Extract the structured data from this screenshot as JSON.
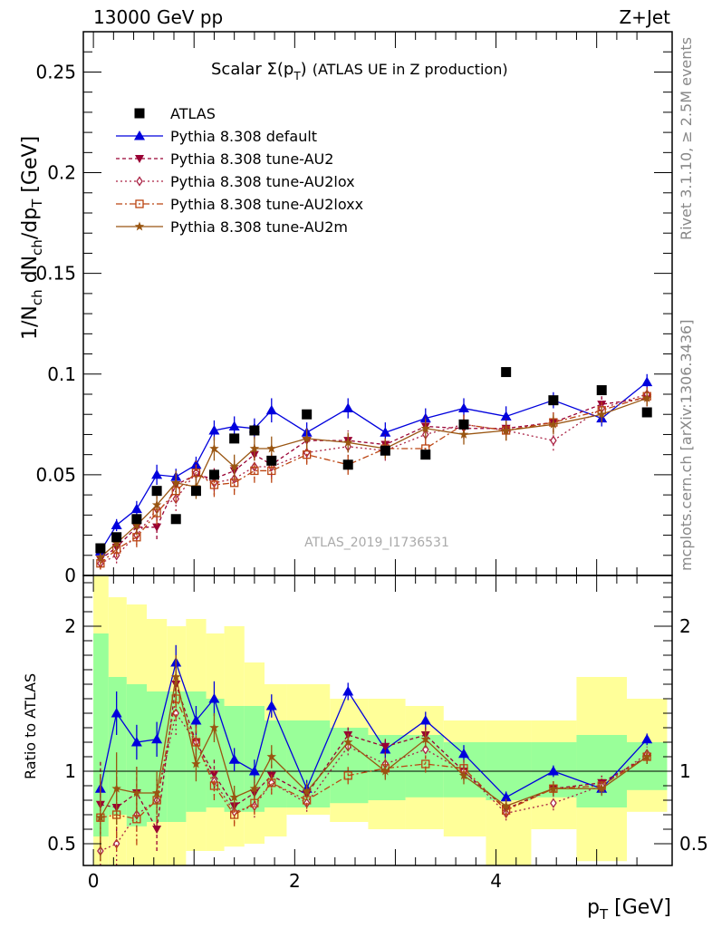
{
  "header": {
    "left": "13000 GeV pp",
    "right": "Z+Jet"
  },
  "side_labels": {
    "rivet": "Rivet 3.1.10, ≥ 2.5M events",
    "mcplots": "mcplots.cern.ch [arXiv:1306.3436]"
  },
  "colors": {
    "atlas": "#000000",
    "default": "#0000dd",
    "au2": "#990033",
    "au2lox": "#aa2244",
    "au2loxx": "#bb4411",
    "au2m": "#995511",
    "band_inner": "#99ff99",
    "band_outer": "#ffff99"
  },
  "chart_data": [
    {
      "type": "line",
      "title_main": "Scalar Σ(p",
      "title_sub": "T",
      "title_close": ")",
      "title_rest": "(ATLAS UE in Z production)",
      "ylabel": "1/N_ch dN_ch/dp_T [GeV]",
      "reference": "ATLAS_2019_I1736531",
      "xlim": [
        -0.1,
        5.75
      ],
      "ylim": [
        0,
        0.27
      ],
      "yticks": [
        {
          "v": 0,
          "label": "0"
        },
        {
          "v": 0.05,
          "label": "0.05"
        },
        {
          "v": 0.1,
          "label": "0.1"
        },
        {
          "v": 0.15,
          "label": "0.15"
        },
        {
          "v": 0.2,
          "label": "0.2"
        },
        {
          "v": 0.25,
          "label": "0.25"
        }
      ],
      "x": [
        0.07,
        0.23,
        0.43,
        0.63,
        0.82,
        1.02,
        1.2,
        1.4,
        1.6,
        1.77,
        2.12,
        2.53,
        2.9,
        3.3,
        3.68,
        4.1,
        4.57,
        5.05,
        5.5
      ],
      "series": [
        {
          "name": "ATLAS",
          "key": "atlas",
          "marker": "square",
          "values": [
            0.0135,
            0.019,
            0.028,
            0.042,
            0.028,
            0.042,
            0.05,
            0.068,
            0.072,
            0.057,
            0.08,
            0.055,
            0.062,
            0.06,
            0.075,
            0.101,
            0.087,
            0.092,
            0.081
          ]
        },
        {
          "name": "Pythia 8.308 default",
          "key": "default",
          "marker": "triangle-up",
          "dash": "",
          "values": [
            0.012,
            0.025,
            0.033,
            0.05,
            0.049,
            0.055,
            0.072,
            0.074,
            0.073,
            0.082,
            0.071,
            0.083,
            0.071,
            0.078,
            0.083,
            0.079,
            0.087,
            0.078,
            0.096
          ],
          "errors": [
            0.002,
            0.003,
            0.004,
            0.005,
            0.004,
            0.004,
            0.005,
            0.005,
            0.005,
            0.006,
            0.005,
            0.005,
            0.005,
            0.005,
            0.005,
            0.005,
            0.004,
            0.004,
            0.004
          ]
        },
        {
          "name": "Pythia 8.308 tune-AU2",
          "key": "au2",
          "marker": "triangle-down",
          "dash": "4,3",
          "values": [
            0.008,
            0.014,
            0.024,
            0.024,
            0.045,
            0.05,
            0.048,
            0.052,
            0.06,
            0.055,
            0.067,
            0.067,
            0.065,
            0.074,
            0.073,
            0.073,
            0.076,
            0.085,
            0.088
          ],
          "errors": [
            0.003,
            0.004,
            0.005,
            0.006,
            0.006,
            0.006,
            0.006,
            0.006,
            0.006,
            0.006,
            0.005,
            0.005,
            0.005,
            0.005,
            0.005,
            0.005,
            0.005,
            0.004,
            0.004
          ]
        },
        {
          "name": "Pythia 8.308 tune-AU2lox",
          "key": "au2lox",
          "marker": "diamond-open",
          "dash": "2,3",
          "values": [
            0.006,
            0.01,
            0.02,
            0.033,
            0.038,
            0.051,
            0.046,
            0.048,
            0.054,
            0.054,
            0.061,
            0.064,
            0.062,
            0.07,
            0.075,
            0.072,
            0.067,
            0.083,
            0.09
          ],
          "errors": [
            0.003,
            0.004,
            0.005,
            0.006,
            0.006,
            0.006,
            0.006,
            0.006,
            0.006,
            0.006,
            0.005,
            0.005,
            0.005,
            0.005,
            0.005,
            0.005,
            0.005,
            0.004,
            0.004
          ]
        },
        {
          "name": "Pythia 8.308 tune-AU2loxx",
          "key": "au2loxx",
          "marker": "square-open",
          "dash": "7,3,2,3",
          "values": [
            0.006,
            0.013,
            0.019,
            0.031,
            0.042,
            0.051,
            0.045,
            0.046,
            0.052,
            0.052,
            0.06,
            0.055,
            0.063,
            0.063,
            0.075,
            0.072,
            0.076,
            0.082,
            0.089
          ],
          "errors": [
            0.003,
            0.004,
            0.005,
            0.006,
            0.006,
            0.006,
            0.006,
            0.006,
            0.006,
            0.006,
            0.005,
            0.005,
            0.005,
            0.005,
            0.005,
            0.005,
            0.005,
            0.004,
            0.004
          ]
        },
        {
          "name": "Pythia 8.308 tune-AU2m",
          "key": "au2m",
          "marker": "star",
          "dash": "",
          "values": [
            0.009,
            0.016,
            0.025,
            0.035,
            0.046,
            0.044,
            0.063,
            0.054,
            0.063,
            0.063,
            0.068,
            0.066,
            0.063,
            0.073,
            0.07,
            0.072,
            0.075,
            0.08,
            0.088
          ],
          "errors": [
            0.003,
            0.004,
            0.005,
            0.006,
            0.006,
            0.006,
            0.006,
            0.006,
            0.006,
            0.006,
            0.005,
            0.005,
            0.005,
            0.005,
            0.005,
            0.005,
            0.005,
            0.004,
            0.004
          ]
        }
      ]
    },
    {
      "type": "line",
      "ylabel": "Ratio to ATLAS",
      "xlabel": "p_T [GeV]",
      "xlim": [
        -0.1,
        5.75
      ],
      "ylim": [
        0.35,
        2.35
      ],
      "xticks": [
        {
          "v": 0,
          "label": "0"
        },
        {
          "v": 2,
          "label": "2"
        },
        {
          "v": 4,
          "label": "4"
        }
      ],
      "yticks": [
        {
          "v": 0.5,
          "label": "0.5"
        },
        {
          "v": 1,
          "label": "1"
        },
        {
          "v": 2,
          "label": "2"
        }
      ],
      "bands": {
        "edges": [
          0,
          0.15,
          0.33,
          0.53,
          0.73,
          0.92,
          1.12,
          1.3,
          1.5,
          1.7,
          1.92,
          2.35,
          2.73,
          3.1,
          3.48,
          3.9,
          4.35,
          4.8,
          5.3,
          5.7
        ],
        "inner": [
          [
            0.55,
            1.95
          ],
          [
            0.7,
            1.65
          ],
          [
            0.62,
            1.6
          ],
          [
            0.65,
            1.55
          ],
          [
            0.65,
            1.55
          ],
          [
            0.72,
            1.55
          ],
          [
            0.75,
            1.5
          ],
          [
            0.72,
            1.45
          ],
          [
            0.72,
            1.45
          ],
          [
            0.75,
            1.35
          ],
          [
            0.75,
            1.35
          ],
          [
            0.78,
            1.3
          ],
          [
            0.8,
            1.25
          ],
          [
            0.82,
            1.25
          ],
          [
            0.82,
            1.2
          ],
          [
            0.8,
            1.2
          ],
          [
            0.82,
            1.2
          ],
          [
            0.75,
            1.25
          ],
          [
            0.87,
            1.2
          ]
        ],
        "outer": [
          [
            0.35,
            2.35
          ],
          [
            0.35,
            2.2
          ],
          [
            0.35,
            2.15
          ],
          [
            0.35,
            2.05
          ],
          [
            0.35,
            2.0
          ],
          [
            0.45,
            2.05
          ],
          [
            0.45,
            1.95
          ],
          [
            0.48,
            2.0
          ],
          [
            0.5,
            1.75
          ],
          [
            0.55,
            1.6
          ],
          [
            0.7,
            1.6
          ],
          [
            0.65,
            1.5
          ],
          [
            0.6,
            1.5
          ],
          [
            0.6,
            1.45
          ],
          [
            0.55,
            1.35
          ],
          [
            0.35,
            1.35
          ],
          [
            0.6,
            1.35
          ],
          [
            0.38,
            1.65
          ],
          [
            0.72,
            1.5
          ]
        ]
      },
      "series": [
        {
          "name": "Pythia 8.308 default",
          "key": "default",
          "marker": "triangle-up",
          "dash": "",
          "values": [
            0.88,
            1.4,
            1.2,
            1.22,
            1.75,
            1.35,
            1.5,
            1.08,
            1.0,
            1.45,
            0.88,
            1.55,
            1.15,
            1.35,
            1.12,
            0.82,
            1.0,
            0.88,
            1.22
          ],
          "errors": [
            0.08,
            0.15,
            0.12,
            0.12,
            0.12,
            0.1,
            0.12,
            0.08,
            0.08,
            0.08,
            0.06,
            0.06,
            0.06,
            0.06,
            0.06,
            0.04,
            0.04,
            0.04,
            0.04
          ]
        },
        {
          "name": "Pythia 8.308 tune-AU2",
          "key": "au2",
          "marker": "triangle-down",
          "dash": "4,3",
          "values": [
            0.77,
            0.75,
            0.85,
            0.6,
            1.6,
            1.2,
            0.98,
            0.76,
            0.85,
            0.97,
            0.84,
            1.25,
            1.17,
            1.25,
            1.0,
            0.74,
            0.88,
            0.92,
            1.1
          ],
          "errors": [
            0.3,
            0.25,
            0.18,
            0.15,
            0.15,
            0.12,
            0.1,
            0.08,
            0.08,
            0.08,
            0.06,
            0.06,
            0.06,
            0.06,
            0.06,
            0.05,
            0.05,
            0.05,
            0.05
          ]
        },
        {
          "name": "Pythia 8.308 tune-AU2lox",
          "key": "au2lox",
          "marker": "diamond-open",
          "dash": "2,3",
          "values": [
            0.45,
            0.5,
            0.7,
            0.8,
            1.4,
            1.2,
            0.93,
            0.72,
            0.76,
            0.92,
            0.78,
            1.17,
            1.05,
            1.15,
            1.0,
            0.71,
            0.78,
            0.9,
            1.12
          ],
          "errors": [
            0.3,
            0.25,
            0.18,
            0.15,
            0.15,
            0.12,
            0.1,
            0.08,
            0.08,
            0.08,
            0.06,
            0.06,
            0.06,
            0.06,
            0.06,
            0.05,
            0.05,
            0.05,
            0.05
          ]
        },
        {
          "name": "Pythia 8.308 tune-AU2loxx",
          "key": "au2loxx",
          "marker": "square-open",
          "dash": "7,3,2,3",
          "values": [
            0.68,
            0.7,
            0.67,
            0.8,
            1.5,
            1.2,
            0.9,
            0.7,
            0.78,
            0.92,
            0.8,
            0.97,
            1.02,
            1.05,
            1.02,
            0.73,
            0.88,
            0.9,
            1.1
          ],
          "errors": [
            0.3,
            0.25,
            0.18,
            0.15,
            0.15,
            0.12,
            0.1,
            0.08,
            0.08,
            0.08,
            0.06,
            0.06,
            0.06,
            0.06,
            0.06,
            0.05,
            0.05,
            0.05,
            0.05
          ]
        },
        {
          "name": "Pythia 8.308 tune-AU2m",
          "key": "au2m",
          "marker": "star",
          "dash": "",
          "values": [
            0.68,
            0.88,
            0.85,
            0.85,
            1.65,
            1.05,
            1.3,
            0.82,
            0.88,
            1.1,
            0.86,
            1.2,
            1.0,
            1.22,
            0.97,
            0.76,
            0.88,
            0.88,
            1.1
          ],
          "errors": [
            0.3,
            0.25,
            0.18,
            0.15,
            0.15,
            0.12,
            0.1,
            0.08,
            0.08,
            0.08,
            0.06,
            0.06,
            0.06,
            0.06,
            0.06,
            0.05,
            0.05,
            0.05,
            0.05
          ]
        }
      ]
    }
  ]
}
